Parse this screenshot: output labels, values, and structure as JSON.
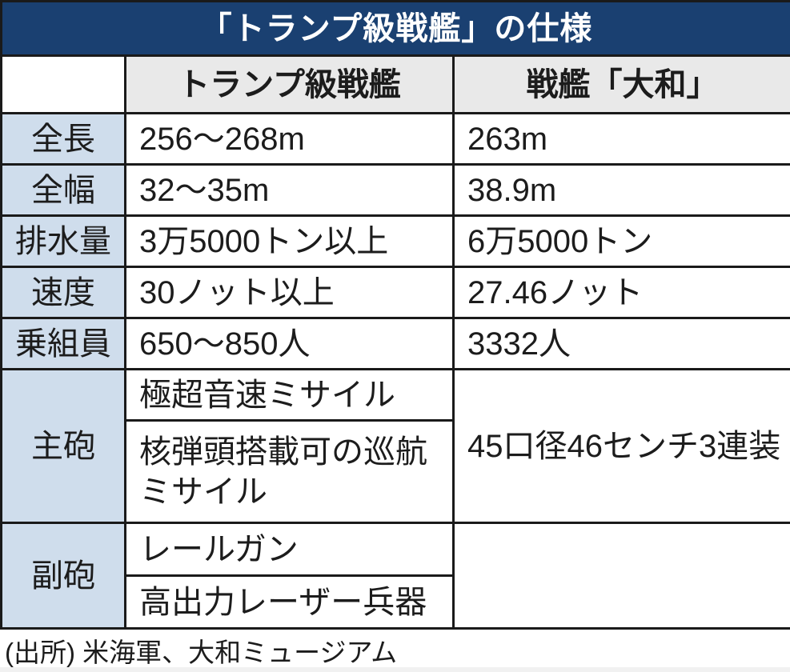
{
  "title": "「トランプ級戦艦」の仕様",
  "colors": {
    "title_bg": "#1a4071",
    "title_text": "#ffffff",
    "header_bg": "#e9e9e9",
    "label_bg": "#cfddec",
    "border": "#1a1a1a"
  },
  "header": {
    "trump": "トランプ級戦艦",
    "yamato": "戦艦「大和」"
  },
  "rows": {
    "length": {
      "label": "全長",
      "trump": "256～268m",
      "yamato": "263m"
    },
    "beam": {
      "label": "全幅",
      "trump": "32～35m",
      "yamato": "38.9m"
    },
    "displacement": {
      "label": "排水量",
      "trump": "3万5000トン以上",
      "yamato": "6万5000トン"
    },
    "speed": {
      "label": "速度",
      "trump": "30ノット以上",
      "yamato": "27.46ノット"
    },
    "crew": {
      "label": "乗組員",
      "trump": "650～850人",
      "yamato": "3332人"
    },
    "main_gun": {
      "label": "主砲",
      "trump1": "極超音速ミサイル",
      "trump2": "核弾頭搭載可の巡航ミサイル",
      "yamato": "45口径46センチ3連装"
    },
    "secondary_gun": {
      "label": "副砲",
      "trump1": "レールガン",
      "trump2": "高出力レーザー兵器",
      "yamato": ""
    }
  },
  "source": "(出所) 米海軍、大和ミュージアム"
}
